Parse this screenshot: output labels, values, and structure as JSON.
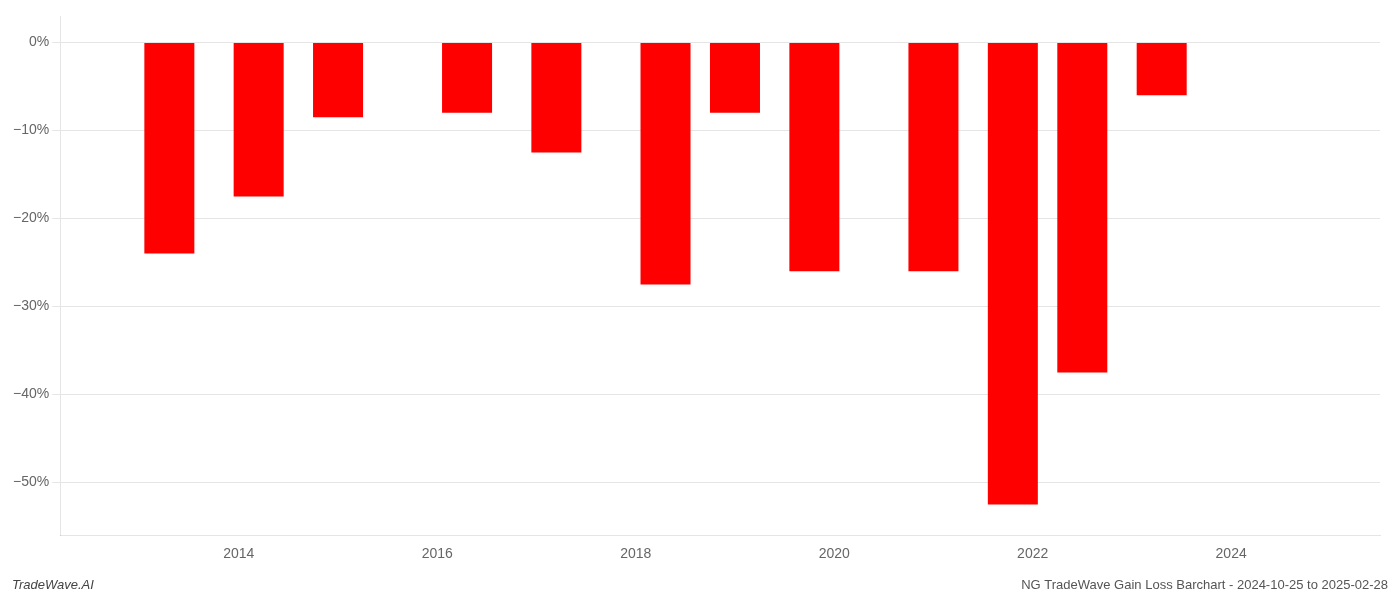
{
  "chart_data": {
    "type": "bar",
    "x": [
      2013.3,
      2014.2,
      2015.0,
      2016.3,
      2017.2,
      2018.3,
      2019.0,
      2019.8,
      2021.0,
      2021.8,
      2022.5,
      2023.3
    ],
    "values": [
      -24.0,
      -17.5,
      -8.5,
      -8.0,
      -12.5,
      -27.5,
      -8.0,
      -26.0,
      -26.0,
      -52.5,
      -37.5,
      -6.0
    ],
    "color": "#FF0000",
    "xlim": [
      2012.2,
      2025.5
    ],
    "xticks": [
      2014,
      2016,
      2018,
      2020,
      2022,
      2024
    ],
    "ylim": [
      -56,
      3
    ],
    "yticks": [
      {
        "value": 0,
        "label": "0%"
      },
      {
        "value": -10,
        "label": "−10%"
      },
      {
        "value": -20,
        "label": "−20%"
      },
      {
        "value": -30,
        "label": "−30%"
      },
      {
        "value": -40,
        "label": "−40%"
      },
      {
        "value": -50,
        "label": "−50%"
      }
    ],
    "grid": "y",
    "annotations": [
      "TradeWave.AI",
      "NG TradeWave Gain Loss Barchart - 2024-10-25 to 2025-02-28"
    ]
  }
}
